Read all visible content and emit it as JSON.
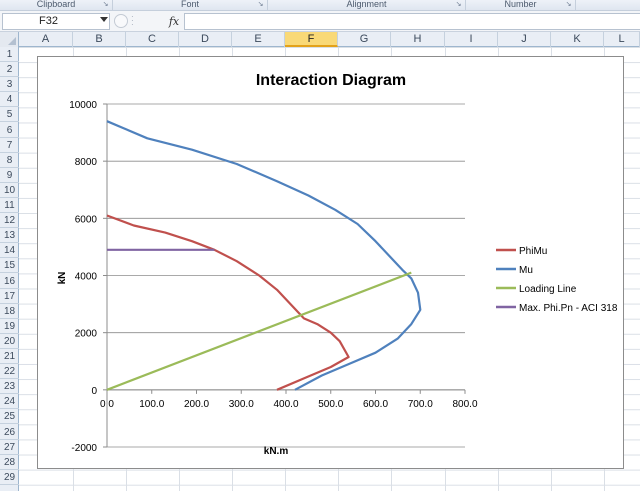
{
  "ribbon": {
    "groups": [
      {
        "name": "clipboard",
        "label": "Clipboard"
      },
      {
        "name": "font",
        "label": "Font"
      },
      {
        "name": "alignment",
        "label": "Alignment"
      },
      {
        "name": "number",
        "label": "Number"
      }
    ]
  },
  "formula_bar": {
    "name_box": "F32",
    "fx_label": "fx",
    "formula": ""
  },
  "sheet": {
    "columns": [
      "A",
      "B",
      "C",
      "D",
      "E",
      "F",
      "G",
      "H",
      "I",
      "J",
      "K",
      "L"
    ],
    "active_column": "F",
    "rows": [
      "1",
      "2",
      "3",
      "4",
      "5",
      "6",
      "7",
      "8",
      "9",
      "10",
      "11",
      "12",
      "13",
      "14",
      "15",
      "16",
      "17",
      "18",
      "19",
      "20",
      "21",
      "22",
      "23",
      "24",
      "25",
      "26",
      "27",
      "28",
      "29"
    ]
  },
  "chart_data": {
    "type": "line",
    "title": "Interaction Diagram",
    "xlabel": "kN.m",
    "ylabel": "kN",
    "xlim": [
      0,
      800
    ],
    "ylim": [
      -2000,
      10000
    ],
    "x_ticks": [
      "0.0",
      "100.0",
      "200.0",
      "300.0",
      "400.0",
      "500.0",
      "600.0",
      "700.0",
      "800.0"
    ],
    "y_ticks": [
      "10000",
      "8000",
      "6000",
      "4000",
      "2000",
      "0",
      "-2000"
    ],
    "grid": "horizontal",
    "legend_position": "right",
    "series": [
      {
        "name": "PhiMu",
        "color": "#c0504d",
        "points": [
          [
            0,
            6100
          ],
          [
            60,
            5750
          ],
          [
            130,
            5500
          ],
          [
            190,
            5200
          ],
          [
            240,
            4900
          ],
          [
            290,
            4500
          ],
          [
            340,
            4000
          ],
          [
            380,
            3500
          ],
          [
            410,
            3000
          ],
          [
            440,
            2500
          ],
          [
            470,
            2300
          ],
          [
            500,
            2000
          ],
          [
            520,
            1700
          ],
          [
            540,
            1150
          ],
          [
            500,
            800
          ],
          [
            440,
            400
          ],
          [
            380,
            0
          ]
        ]
      },
      {
        "name": "Mu",
        "color": "#4f81bd",
        "points": [
          [
            0,
            9400
          ],
          [
            90,
            8800
          ],
          [
            190,
            8400
          ],
          [
            290,
            7900
          ],
          [
            380,
            7300
          ],
          [
            450,
            6800
          ],
          [
            510,
            6300
          ],
          [
            560,
            5800
          ],
          [
            600,
            5200
          ],
          [
            630,
            4700
          ],
          [
            660,
            4200
          ],
          [
            680,
            3900
          ],
          [
            695,
            3400
          ],
          [
            700,
            2800
          ],
          [
            680,
            2300
          ],
          [
            650,
            1800
          ],
          [
            600,
            1300
          ],
          [
            540,
            900
          ],
          [
            480,
            500
          ],
          [
            420,
            0
          ]
        ]
      },
      {
        "name": "Loading Line",
        "color": "#9bbb59",
        "points": [
          [
            0,
            0
          ],
          [
            680,
            4100
          ]
        ]
      },
      {
        "name": "Max. Phi.Pn - ACI 318",
        "color": "#8064a2",
        "points": [
          [
            0,
            4900
          ],
          [
            240,
            4900
          ]
        ]
      }
    ]
  }
}
